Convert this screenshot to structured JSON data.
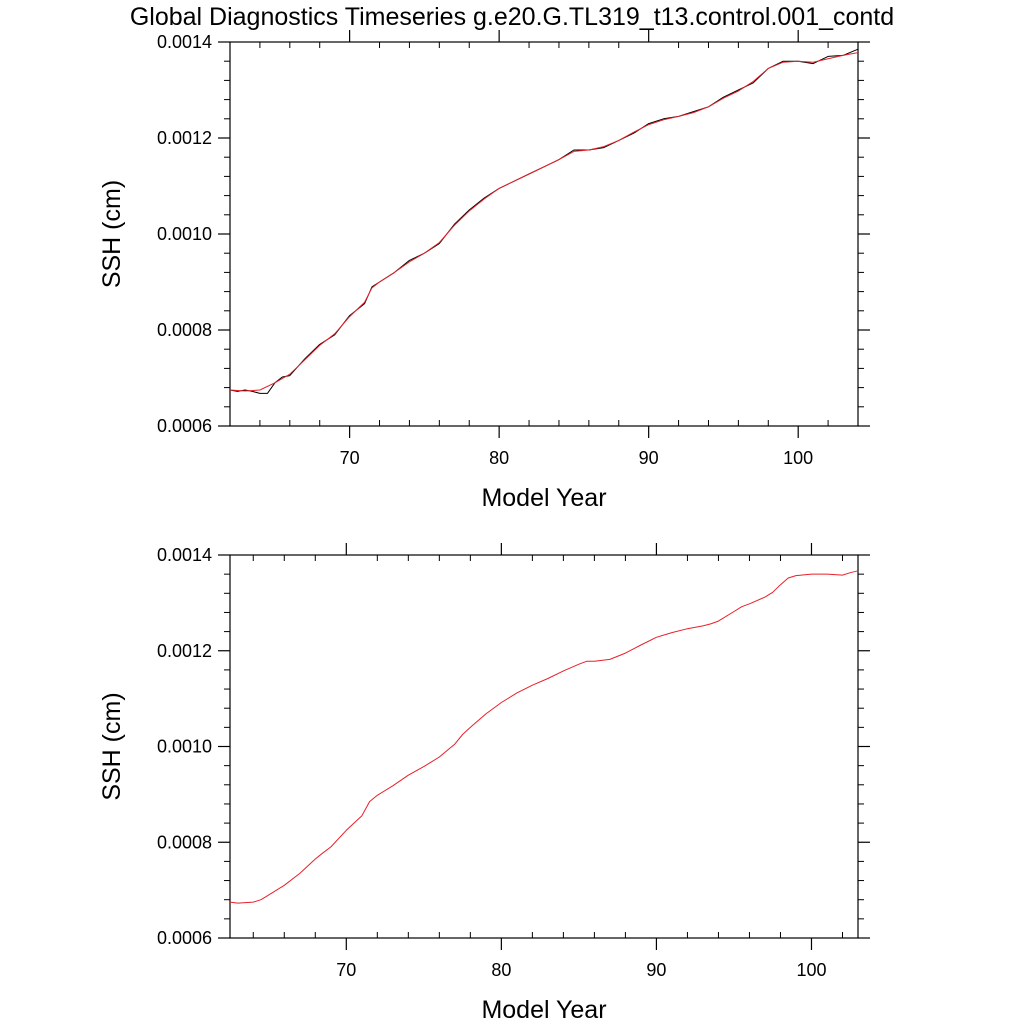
{
  "title": "Global Diagnostics Timeseries g.e20.G.TL319_t13.control.001_contd",
  "colors": {
    "raw": "#000000",
    "smoothed": "#e8202a",
    "axis": "#000000"
  },
  "chart_data": [
    {
      "type": "line",
      "xlabel": "Model Year",
      "ylabel": "SSH (cm)",
      "xlim": [
        62,
        104
      ],
      "ylim": [
        0.0006,
        0.0014
      ],
      "xticks": [
        70,
        80,
        90,
        100
      ],
      "xtick_labels": [
        "70",
        "80",
        "90",
        "100"
      ],
      "yticks": [
        0.0006,
        0.0008,
        0.001,
        0.0012,
        0.0014
      ],
      "ytick_labels": [
        "0.0006",
        "0.0008",
        "0.0010",
        "0.0012",
        "0.0014"
      ],
      "grid": false,
      "series": [
        {
          "color": "#000000",
          "x": [
            62,
            62.5,
            63,
            63.5,
            64,
            64.5,
            65,
            65.5,
            66,
            67,
            68,
            69,
            70,
            71,
            71.5,
            72,
            73,
            74,
            75,
            76,
            77,
            78,
            79,
            80,
            81,
            82,
            83,
            84,
            85,
            86,
            87,
            88,
            89,
            90,
            91,
            92,
            93,
            94,
            95,
            96,
            97,
            98,
            99,
            100,
            101,
            102,
            103,
            104
          ],
          "y": [
            0.000675,
            0.000672,
            0.000675,
            0.000672,
            0.000668,
            0.000668,
            0.00069,
            0.000702,
            0.000705,
            0.00074,
            0.00077,
            0.00079,
            0.00083,
            0.000855,
            0.00089,
            0.0009,
            0.00092,
            0.000945,
            0.00096,
            0.00098,
            0.00102,
            0.00105,
            0.001075,
            0.001095,
            0.00111,
            0.001125,
            0.00114,
            0.001155,
            0.001175,
            0.001175,
            0.00118,
            0.001195,
            0.00121,
            0.00123,
            0.00124,
            0.001245,
            0.001255,
            0.001265,
            0.001285,
            0.0013,
            0.001315,
            0.001345,
            0.00136,
            0.00136,
            0.001355,
            0.00137,
            0.001372,
            0.001385
          ]
        },
        {
          "color": "#e8202a",
          "x": [
            62,
            63,
            64,
            65,
            66,
            67,
            68,
            69,
            70,
            71,
            71.5,
            72,
            73,
            74,
            75,
            76,
            77,
            78,
            79,
            80,
            81,
            82,
            83,
            84,
            85,
            86,
            87,
            88,
            89,
            90,
            91,
            92,
            93,
            94,
            95,
            96,
            97,
            98,
            99,
            100,
            101,
            102,
            103,
            104
          ],
          "y": [
            0.000675,
            0.000673,
            0.000675,
            0.00069,
            0.000708,
            0.000738,
            0.000768,
            0.000792,
            0.000828,
            0.000858,
            0.000888,
            0.0009,
            0.00092,
            0.000942,
            0.00096,
            0.000982,
            0.001018,
            0.001048,
            0.001073,
            0.001095,
            0.00111,
            0.001125,
            0.00114,
            0.001155,
            0.001172,
            0.001175,
            0.001182,
            0.001195,
            0.001212,
            0.001228,
            0.001238,
            0.001245,
            0.001253,
            0.001265,
            0.001283,
            0.001298,
            0.001318,
            0.001345,
            0.001358,
            0.00136,
            0.001358,
            0.001365,
            0.001372,
            0.001378
          ]
        }
      ]
    },
    {
      "type": "line",
      "xlabel": "Model Year",
      "ylabel": "SSH (cm)",
      "xlim": [
        62.5,
        103
      ],
      "ylim": [
        0.0006,
        0.0014
      ],
      "xticks": [
        70,
        80,
        90,
        100
      ],
      "xtick_labels": [
        "70",
        "80",
        "90",
        "100"
      ],
      "yticks": [
        0.0006,
        0.0008,
        0.001,
        0.0012,
        0.0014
      ],
      "ytick_labels": [
        "0.0006",
        "0.0008",
        "0.0010",
        "0.0012",
        "0.0014"
      ],
      "grid": false,
      "series": [
        {
          "color": "#e8202a",
          "x": [
            62.5,
            63,
            64,
            64.5,
            65,
            66,
            67,
            68,
            68.5,
            69,
            70,
            71,
            71.5,
            72,
            73,
            74,
            75,
            75.5,
            76,
            77,
            77.5,
            78,
            79,
            80,
            81,
            82,
            83,
            84,
            85,
            85.5,
            86,
            87,
            88,
            89,
            90,
            91,
            92,
            93,
            93.5,
            94,
            95,
            95.5,
            96,
            97,
            97.5,
            98,
            98.5,
            99,
            100,
            101,
            102,
            102.5,
            103
          ],
          "y": [
            0.000675,
            0.000673,
            0.000675,
            0.00068,
            0.00069,
            0.00071,
            0.000735,
            0.000765,
            0.000778,
            0.00079,
            0.000825,
            0.000855,
            0.000885,
            0.000898,
            0.000918,
            0.00094,
            0.000958,
            0.000968,
            0.000978,
            0.001005,
            0.001025,
            0.00104,
            0.001068,
            0.001092,
            0.001112,
            0.001128,
            0.001142,
            0.001158,
            0.001172,
            0.001178,
            0.001178,
            0.001182,
            0.001195,
            0.001212,
            0.001228,
            0.001238,
            0.001246,
            0.001252,
            0.001256,
            0.001262,
            0.001282,
            0.001292,
            0.001298,
            0.001312,
            0.001322,
            0.001338,
            0.001352,
            0.001357,
            0.00136,
            0.00136,
            0.001358,
            0.001363,
            0.001367
          ]
        }
      ]
    }
  ]
}
